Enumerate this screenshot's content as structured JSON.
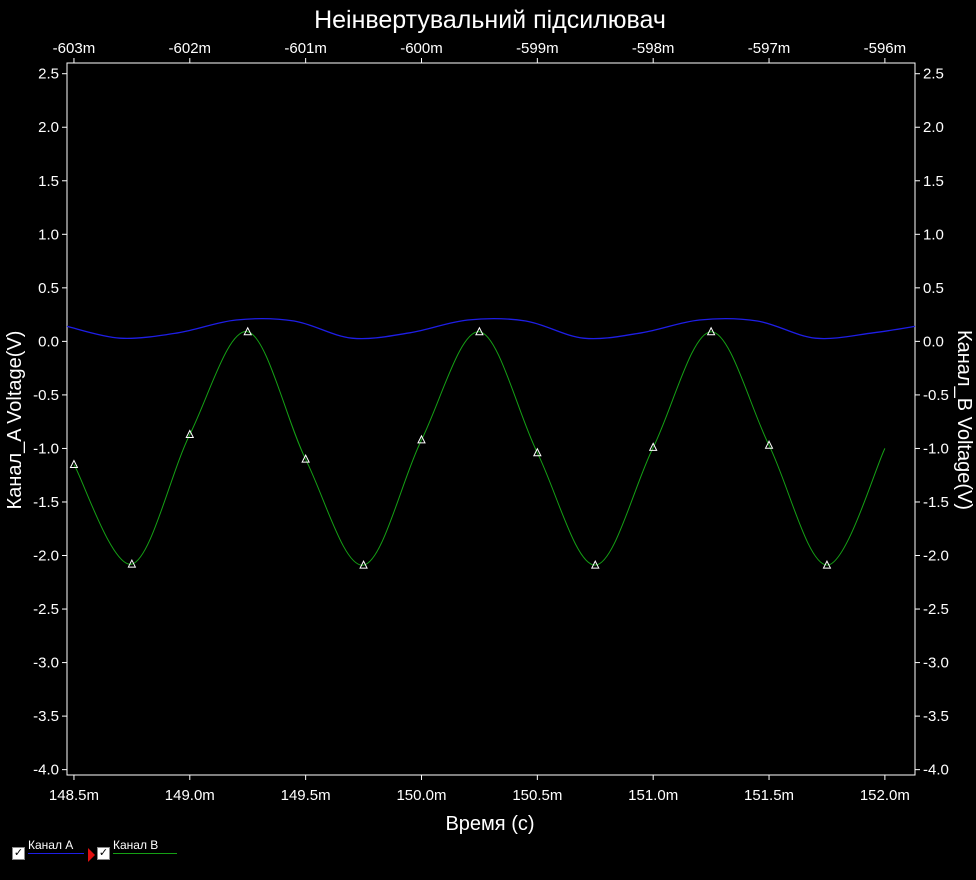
{
  "chart_data": {
    "type": "line",
    "title": "Неінвертувальний підсилювач",
    "xlabel": "Время (с)",
    "ylabel_left": "Канал_A Voltage(V)",
    "ylabel_right": "Канал_B Voltage(V)",
    "xlim": [
      0.14847,
      0.15213
    ],
    "ylim": [
      -4.05,
      2.6
    ],
    "x_ticks": [
      "148.5m",
      "149.0m",
      "149.5m",
      "150.0m",
      "150.5m",
      "151.0m",
      "151.5m",
      "152.0m"
    ],
    "x_tick_values": [
      0.1485,
      0.149,
      0.1495,
      0.15,
      0.1505,
      0.151,
      0.1515,
      0.152
    ],
    "top_ticks": [
      "-603m",
      "-602m",
      "-601m",
      "-600m",
      "-599m",
      "-598m",
      "-597m",
      "-596m"
    ],
    "y_ticks": [
      "2.5",
      "2.0",
      "1.5",
      "1.0",
      "0.5",
      "0.0",
      "-0.5",
      "-1.0",
      "-1.5",
      "-2.0",
      "-2.5",
      "-3.0",
      "-3.5",
      "-4.0"
    ],
    "y_tick_values": [
      2.5,
      2.0,
      1.5,
      1.0,
      0.5,
      0.0,
      -0.5,
      -1.0,
      -1.5,
      -2.0,
      -2.5,
      -3.0,
      -3.5,
      -4.0
    ],
    "series": [
      {
        "name": "Канал A",
        "color": "#1e1ee6",
        "x": [
          0.14847,
          0.1487,
          0.14895,
          0.1492,
          0.14945,
          0.1497,
          0.14995,
          0.1502,
          0.15045,
          0.1507,
          0.15095,
          0.1512,
          0.15145,
          0.1517,
          0.15195,
          0.15213
        ],
        "y": [
          0.14,
          0.03,
          0.08,
          0.2,
          0.19,
          0.03,
          0.08,
          0.2,
          0.19,
          0.03,
          0.08,
          0.2,
          0.19,
          0.03,
          0.08,
          0.14
        ]
      },
      {
        "name": "Канал B",
        "color": "#15a015",
        "x": [
          0.1485,
          0.14875,
          0.149,
          0.14925,
          0.1495,
          0.14975,
          0.15,
          0.15025,
          0.1505,
          0.15075,
          0.151,
          0.15125,
          0.1515,
          0.15175,
          0.152
        ],
        "y": [
          -1.15,
          -2.08,
          -0.87,
          0.09,
          -1.1,
          -2.09,
          -0.92,
          0.09,
          -1.04,
          -2.09,
          -0.99,
          0.09,
          -0.97,
          -2.09,
          -1.0
        ],
        "markers_x": [
          0.1485,
          0.14875,
          0.149,
          0.14925,
          0.1495,
          0.14975,
          0.15,
          0.15025,
          0.1505,
          0.15075,
          0.151,
          0.15125,
          0.1515,
          0.15175
        ],
        "markers_y": [
          -1.15,
          -2.08,
          -0.87,
          0.09,
          -1.1,
          -2.09,
          -0.92,
          0.09,
          -1.04,
          -2.09,
          -0.99,
          0.09,
          -0.97,
          -2.09
        ]
      }
    ],
    "grid": false,
    "legend_position": "bottom-left"
  },
  "legend": {
    "item_a": "Канал A",
    "item_b": "Канал B"
  }
}
